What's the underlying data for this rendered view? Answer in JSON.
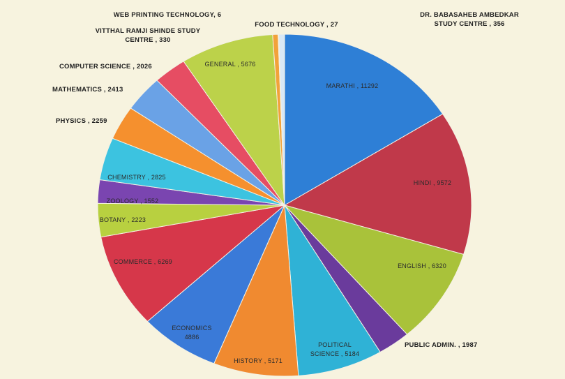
{
  "chart_data": {
    "type": "pie",
    "title": "",
    "slices": [
      {
        "label": "MARATHI , 11292",
        "value": 11292,
        "color": "#2e7fd6"
      },
      {
        "label": "HINDI , 9572",
        "value": 9572,
        "color": "#c0394a"
      },
      {
        "label": "ENGLISH , 6320",
        "value": 6320,
        "color": "#a9c23a"
      },
      {
        "label": "PUBLIC ADMIN. , 1987",
        "value": 1987,
        "color": "#6a3b9c"
      },
      {
        "label": "POLITICAL SCIENCE , 5184",
        "value": 5184,
        "color": "#2fb2d6"
      },
      {
        "label": "HISTORY , 5171",
        "value": 5171,
        "color": "#f08a30"
      },
      {
        "label": "ECONOMICS , 4886",
        "value": 4886,
        "color": "#3a7ad8"
      },
      {
        "label": "COMMERCE , 6269",
        "value": 6269,
        "color": "#d6374a"
      },
      {
        "label": "BOTANY , 2223",
        "value": 2223,
        "color": "#b8d040"
      },
      {
        "label": "ZOOLOGY , 1552",
        "value": 1552,
        "color": "#7a45b0"
      },
      {
        "label": "CHEMISTRY , 2825",
        "value": 2825,
        "color": "#3cc3e0"
      },
      {
        "label": "PHYSICS , 2259",
        "value": 2259,
        "color": "#f5902e"
      },
      {
        "label": "MATHEMATICS , 2413",
        "value": 2413,
        "color": "#6aa2e6"
      },
      {
        "label": "COMPUTER SCIENCE , 2026",
        "value": 2026,
        "color": "#e64d63"
      },
      {
        "label": "GENERAL , 5676",
        "value": 5676,
        "color": "#bcd24a"
      },
      {
        "label": "VITTHAL RAMJI SHINDE STUDY CENTRE , 330",
        "value": 330,
        "color": "#f2a23a"
      },
      {
        "label": "WEB PRINTING TECHNOLOGY, 6",
        "value": 6,
        "color": "#9c5cc4"
      },
      {
        "label": "FOOD TECHNOLOGY , 27",
        "value": 27,
        "color": "#4aa0e6"
      },
      {
        "label": "DR. BABASAHEB AMBEDKAR STUDY CENTRE , 356",
        "value": 356,
        "color": "#d9e8f5"
      }
    ]
  }
}
